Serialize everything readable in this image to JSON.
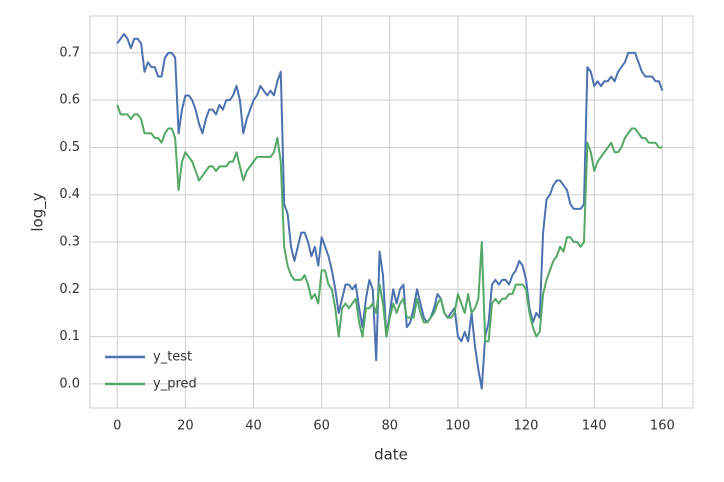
{
  "chart_data": {
    "type": "line",
    "x_label": "date",
    "y_label": "log_y",
    "x": [
      0,
      1,
      2,
      3,
      4,
      5,
      6,
      7,
      8,
      9,
      10,
      11,
      12,
      13,
      14,
      15,
      16,
      17,
      18,
      19,
      20,
      21,
      22,
      23,
      24,
      25,
      26,
      27,
      28,
      29,
      30,
      31,
      32,
      33,
      34,
      35,
      36,
      37,
      38,
      39,
      40,
      41,
      42,
      43,
      44,
      45,
      46,
      47,
      48,
      49,
      50,
      51,
      52,
      53,
      54,
      55,
      56,
      57,
      58,
      59,
      60,
      61,
      62,
      63,
      64,
      65,
      66,
      67,
      68,
      69,
      70,
      71,
      72,
      73,
      74,
      75,
      76,
      77,
      78,
      79,
      80,
      81,
      82,
      83,
      84,
      85,
      86,
      87,
      88,
      89,
      90,
      91,
      92,
      93,
      94,
      95,
      96,
      97,
      98,
      99,
      100,
      101,
      102,
      103,
      104,
      105,
      106,
      107,
      108,
      109,
      110,
      111,
      112,
      113,
      114,
      115,
      116,
      117,
      118,
      119,
      120,
      121,
      122,
      123,
      124,
      125,
      126,
      127,
      128,
      129,
      130,
      131,
      132,
      133,
      134,
      135,
      136,
      137,
      138,
      139,
      140,
      141,
      142,
      143,
      144,
      145,
      146,
      147,
      148,
      149,
      150,
      151,
      152,
      153,
      154,
      155,
      156,
      157,
      158,
      159,
      160
    ],
    "series": [
      {
        "name": "y_test",
        "color": "#4c72b0",
        "values": [
          0.72,
          0.73,
          0.74,
          0.73,
          0.71,
          0.73,
          0.73,
          0.72,
          0.66,
          0.68,
          0.67,
          0.67,
          0.65,
          0.65,
          0.69,
          0.7,
          0.7,
          0.69,
          0.53,
          0.58,
          0.61,
          0.61,
          0.6,
          0.58,
          0.55,
          0.53,
          0.56,
          0.58,
          0.58,
          0.57,
          0.59,
          0.58,
          0.6,
          0.6,
          0.61,
          0.63,
          0.6,
          0.53,
          0.56,
          0.58,
          0.6,
          0.61,
          0.63,
          0.62,
          0.61,
          0.62,
          0.61,
          0.64,
          0.66,
          0.38,
          0.36,
          0.29,
          0.26,
          0.29,
          0.32,
          0.32,
          0.3,
          0.27,
          0.29,
          0.25,
          0.31,
          0.29,
          0.27,
          0.24,
          0.2,
          0.15,
          0.18,
          0.21,
          0.21,
          0.2,
          0.21,
          0.16,
          0.12,
          0.18,
          0.22,
          0.2,
          0.05,
          0.28,
          0.23,
          0.1,
          0.15,
          0.2,
          0.17,
          0.2,
          0.21,
          0.12,
          0.13,
          0.16,
          0.2,
          0.17,
          0.14,
          0.13,
          0.14,
          0.16,
          0.19,
          0.18,
          0.15,
          0.14,
          0.15,
          0.16,
          0.1,
          0.09,
          0.11,
          0.09,
          0.15,
          0.08,
          0.03,
          -0.01,
          0.1,
          0.13,
          0.21,
          0.22,
          0.21,
          0.22,
          0.22,
          0.21,
          0.23,
          0.24,
          0.26,
          0.25,
          0.22,
          0.16,
          0.13,
          0.15,
          0.14,
          0.32,
          0.39,
          0.4,
          0.42,
          0.43,
          0.43,
          0.42,
          0.41,
          0.38,
          0.37,
          0.37,
          0.37,
          0.38,
          0.67,
          0.66,
          0.63,
          0.64,
          0.63,
          0.64,
          0.64,
          0.65,
          0.64,
          0.66,
          0.67,
          0.68,
          0.7,
          0.7,
          0.7,
          0.68,
          0.66,
          0.65,
          0.65,
          0.65,
          0.64,
          0.64,
          0.62
        ]
      },
      {
        "name": "y_pred",
        "color": "#55a868",
        "values": [
          0.59,
          0.57,
          0.57,
          0.57,
          0.56,
          0.57,
          0.57,
          0.56,
          0.53,
          0.53,
          0.53,
          0.52,
          0.52,
          0.51,
          0.53,
          0.54,
          0.54,
          0.52,
          0.41,
          0.47,
          0.49,
          0.48,
          0.47,
          0.45,
          0.43,
          0.44,
          0.45,
          0.46,
          0.46,
          0.45,
          0.46,
          0.46,
          0.46,
          0.47,
          0.47,
          0.49,
          0.46,
          0.43,
          0.45,
          0.46,
          0.47,
          0.48,
          0.48,
          0.48,
          0.48,
          0.48,
          0.49,
          0.52,
          0.47,
          0.29,
          0.25,
          0.23,
          0.22,
          0.22,
          0.22,
          0.23,
          0.21,
          0.18,
          0.19,
          0.17,
          0.24,
          0.24,
          0.21,
          0.2,
          0.16,
          0.1,
          0.16,
          0.17,
          0.16,
          0.17,
          0.18,
          0.13,
          0.1,
          0.16,
          0.16,
          0.17,
          0.15,
          0.21,
          0.17,
          0.1,
          0.14,
          0.17,
          0.15,
          0.17,
          0.18,
          0.14,
          0.14,
          0.14,
          0.18,
          0.15,
          0.13,
          0.13,
          0.14,
          0.15,
          0.17,
          0.18,
          0.15,
          0.14,
          0.14,
          0.15,
          0.19,
          0.17,
          0.15,
          0.19,
          0.15,
          0.16,
          0.18,
          0.3,
          0.09,
          0.09,
          0.17,
          0.18,
          0.17,
          0.18,
          0.18,
          0.19,
          0.19,
          0.21,
          0.21,
          0.21,
          0.2,
          0.15,
          0.12,
          0.1,
          0.11,
          0.19,
          0.22,
          0.24,
          0.26,
          0.27,
          0.29,
          0.28,
          0.31,
          0.31,
          0.3,
          0.3,
          0.29,
          0.3,
          0.51,
          0.49,
          0.45,
          0.47,
          0.48,
          0.49,
          0.5,
          0.51,
          0.49,
          0.49,
          0.5,
          0.52,
          0.53,
          0.54,
          0.54,
          0.53,
          0.52,
          0.52,
          0.51,
          0.51,
          0.51,
          0.5,
          0.5
        ]
      }
    ],
    "xlim": [
      -8,
      169
    ],
    "ylim": [
      -0.051,
      0.778
    ],
    "xticks": [
      0,
      20,
      40,
      60,
      80,
      100,
      120,
      140,
      160
    ],
    "yticks": [
      {
        "value": 0,
        "label": "0.0"
      },
      0.1,
      0.2,
      0.3,
      0.4,
      0.5,
      0.6,
      0.7
    ],
    "grid": true,
    "legend": "lower left"
  }
}
